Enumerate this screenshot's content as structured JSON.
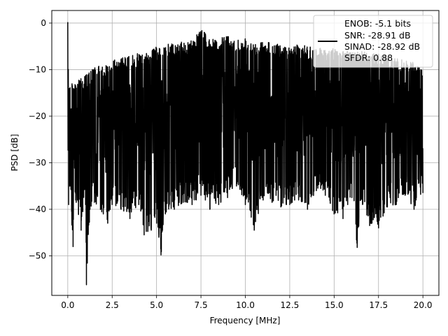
{
  "chart_data": {
    "type": "line",
    "title": "",
    "xlabel": "Frequency [MHz]",
    "ylabel": "PSD [dB]",
    "xlim": [
      -0.9,
      20.9
    ],
    "ylim": [
      -58.5,
      2.7
    ],
    "xticks": [
      0.0,
      2.5,
      5.0,
      7.5,
      10.0,
      12.5,
      15.0,
      17.5,
      20.0
    ],
    "xtick_labels": [
      "0.0",
      "2.5",
      "5.0",
      "7.5",
      "10.0",
      "12.5",
      "15.0",
      "17.5",
      "20.0"
    ],
    "yticks": [
      0,
      -10,
      -20,
      -30,
      -40,
      -50
    ],
    "ytick_labels": [
      "0",
      "−10",
      "−20",
      "−30",
      "−40",
      "−50"
    ],
    "grid": true,
    "legend_position": "top-right",
    "series": [
      {
        "color": "#000000",
        "x": [
          0,
          0.05,
          0.1,
          0.3,
          0.45,
          0.6,
          0.75,
          1.0,
          1.05,
          1.25,
          1.5,
          2.0,
          2.25,
          2.5,
          3.0,
          3.5,
          4.0,
          4.3,
          4.7,
          5.0,
          5.25,
          5.5,
          6.0,
          6.5,
          7.0,
          7.5,
          7.75,
          8.0,
          8.5,
          9.0,
          9.5,
          10.0,
          10.5,
          11.0,
          11.25,
          11.5,
          12.0,
          12.5,
          13.0,
          13.5,
          14.0,
          14.5,
          15.0,
          15.5,
          16.0,
          16.3,
          16.5,
          17.0,
          17.5,
          18.0,
          18.5,
          19.0,
          19.5,
          20.0
        ],
        "upper": [
          0.2,
          -12,
          -13,
          -12.5,
          -12.5,
          -12,
          -11.5,
          -11,
          -11,
          -10,
          -9.5,
          -9,
          -8.5,
          -8,
          -7.5,
          -7,
          -6.5,
          -6.5,
          -6,
          -5,
          -5,
          -4.5,
          -4.5,
          -4,
          -3.5,
          -1,
          -2,
          -3.5,
          -3.5,
          -2.5,
          -3.5,
          -3,
          -4,
          -4,
          -3.5,
          -4.5,
          -4.5,
          -5,
          -4.5,
          -5,
          -5,
          -5.5,
          -5.5,
          -6,
          -6,
          -6,
          -6,
          -6.5,
          -6.5,
          -7,
          -7.5,
          -8,
          -8.5,
          -9.5
        ],
        "lower": [
          -37,
          -39,
          -35,
          -48,
          -38,
          -41,
          -44.5,
          -39,
          -56.2,
          -40,
          -38.5,
          -41,
          -43,
          -39,
          -40,
          -42,
          -39,
          -45.5,
          -44.5,
          -43,
          -49.8,
          -41,
          -40,
          -38.5,
          -39,
          -37,
          -38,
          -40,
          -39,
          -37.5,
          -35,
          -39,
          -44.5,
          -38,
          -36.5,
          -38.5,
          -39.5,
          -39,
          -38,
          -40,
          -36,
          -37,
          -41,
          -42,
          -37.5,
          -48.2,
          -38,
          -43.5,
          -44,
          -39.5,
          -39,
          -37,
          -40,
          -36.5
        ]
      }
    ],
    "legend": {
      "lines": [
        "ENOB: -5.1 bits",
        "SNR: -28.91 dB",
        "SINAD: -28.92 dB",
        "SFDR: 0.88"
      ],
      "color": "#000000"
    }
  }
}
